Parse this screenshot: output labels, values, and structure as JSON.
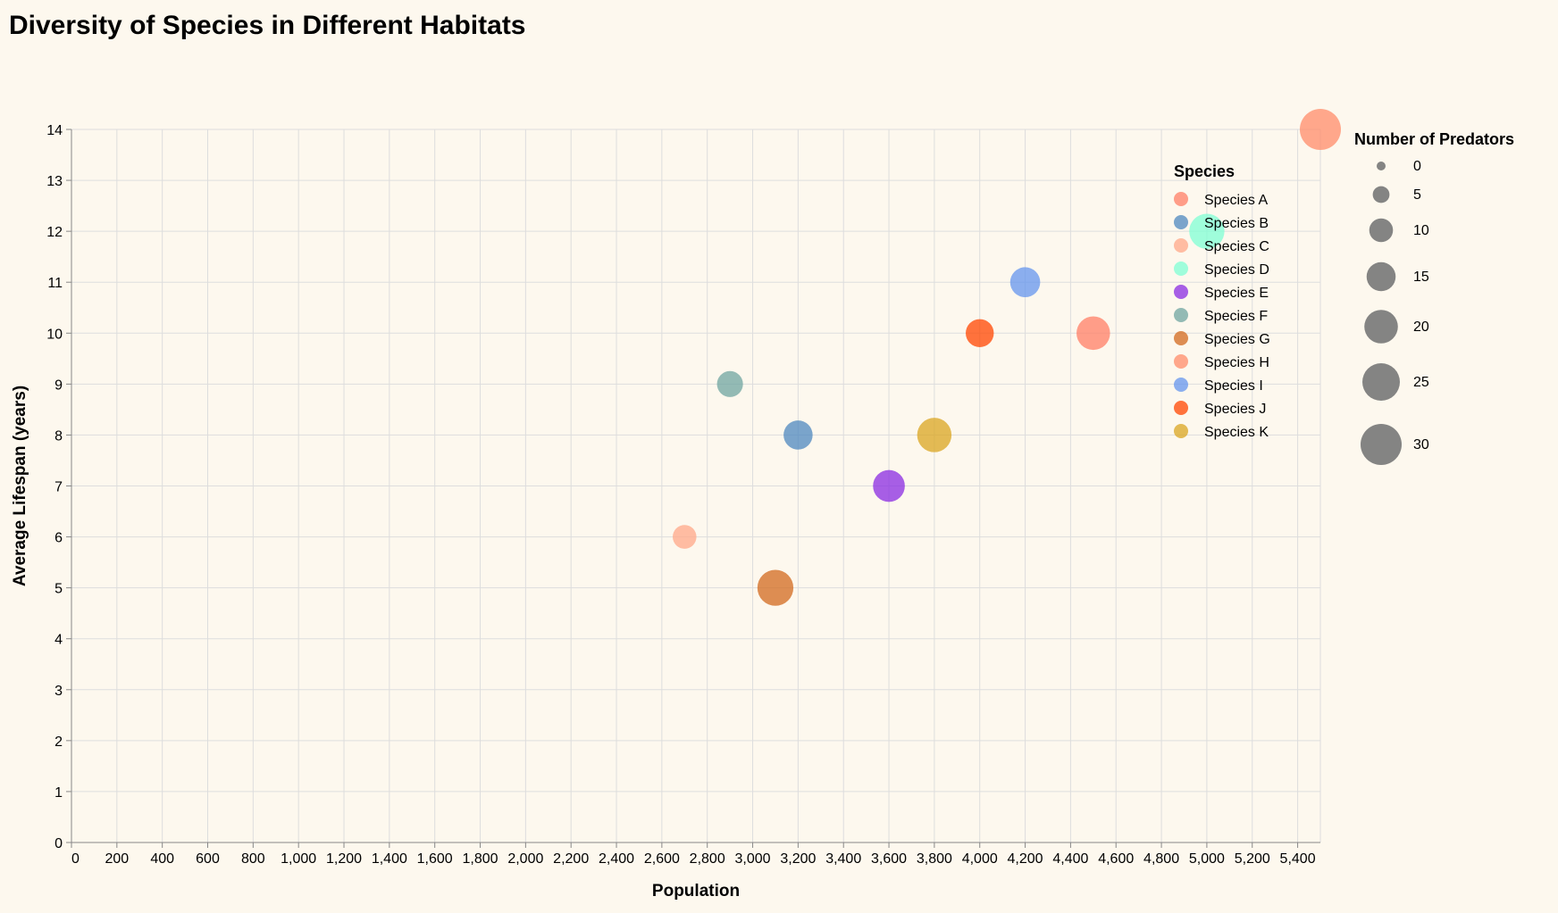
{
  "chart_data": {
    "type": "scatter",
    "title": "Diversity of Species in Different Habitats",
    "xlabel": "Population",
    "ylabel": "Average Lifespan (years)",
    "xlim": [
      0,
      5500
    ],
    "ylim": [
      0,
      14
    ],
    "x_ticks": [
      0,
      200,
      400,
      600,
      800,
      1000,
      1200,
      1400,
      1600,
      1800,
      2000,
      2200,
      2400,
      2600,
      2800,
      3000,
      3200,
      3400,
      3600,
      3800,
      4000,
      4200,
      4400,
      4600,
      4800,
      5000,
      5200,
      5400
    ],
    "x_tick_labels": [
      "0",
      "200",
      "400",
      "600",
      "800",
      "1,000",
      "1,200",
      "1,400",
      "1,600",
      "1,800",
      "2,000",
      "2,200",
      "2,400",
      "2,600",
      "2,800",
      "3,000",
      "3,200",
      "3,400",
      "3,600",
      "3,800",
      "4,000",
      "4,200",
      "4,400",
      "4,600",
      "4,800",
      "5,000",
      "5,200",
      "5,400"
    ],
    "y_ticks": [
      0,
      1,
      2,
      3,
      4,
      5,
      6,
      7,
      8,
      9,
      10,
      11,
      12,
      13,
      14
    ],
    "y_tick_labels": [
      "0",
      "1",
      "2",
      "3",
      "4",
      "5",
      "6",
      "7",
      "8",
      "9",
      "10",
      "11",
      "12",
      "13",
      "14"
    ],
    "grid": true,
    "color_legend_title": "Species",
    "size_legend_title": "Number of Predators",
    "size_legend_values": [
      0,
      5,
      10,
      15,
      20,
      25,
      30
    ],
    "size_legend_labels": [
      "0",
      "5",
      "10",
      "15",
      "20",
      "25",
      "30"
    ],
    "size_max": 30,
    "legend_position": "right",
    "series": [
      {
        "name": "Species A",
        "color": "#FF7F65",
        "x": 4500,
        "y": 10,
        "predators": 20
      },
      {
        "name": "Species B",
        "color": "#4D88BF",
        "x": 3200,
        "y": 8,
        "predators": 15
      },
      {
        "name": "Species C",
        "color": "#FFA888",
        "x": 2700,
        "y": 6,
        "predators": 10
      },
      {
        "name": "Species D",
        "color": "#7FFFD4",
        "x": 5000,
        "y": 12,
        "predators": 22
      },
      {
        "name": "Species E",
        "color": "#8A2BE2",
        "x": 3600,
        "y": 7,
        "predators": 18
      },
      {
        "name": "Species F",
        "color": "#6FA6A0",
        "x": 2900,
        "y": 9,
        "predators": 12
      },
      {
        "name": "Species G",
        "color": "#D2691E",
        "x": 3100,
        "y": 5,
        "predators": 23
      },
      {
        "name": "Species H",
        "color": "#FF8C69",
        "x": 5500,
        "y": 14,
        "predators": 30
      },
      {
        "name": "Species I",
        "color": "#6495ED",
        "x": 4200,
        "y": 11,
        "predators": 16
      },
      {
        "name": "Species J",
        "color": "#FF4500",
        "x": 4000,
        "y": 10,
        "predators": 14
      },
      {
        "name": "Species K",
        "color": "#DAA520",
        "x": 3800,
        "y": 8,
        "predators": 21
      }
    ]
  }
}
